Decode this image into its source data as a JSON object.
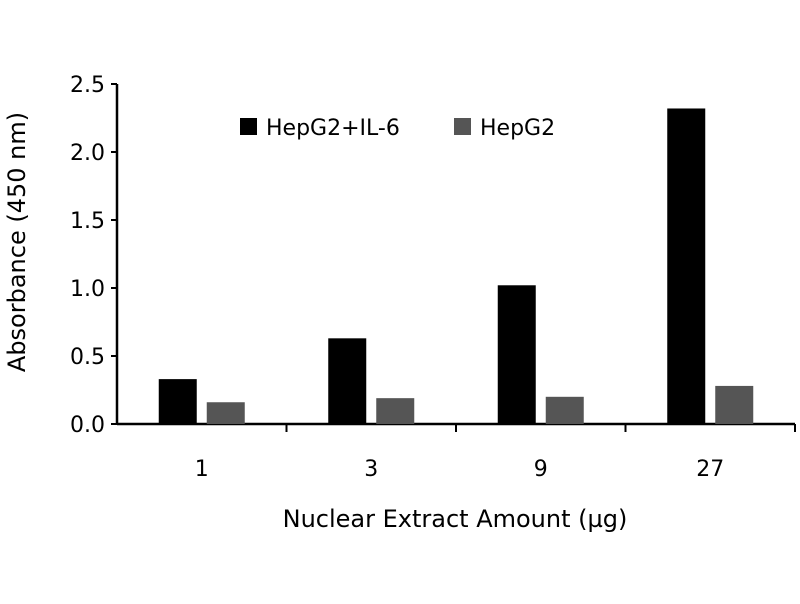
{
  "chart_data": {
    "type": "bar",
    "title": "",
    "xlabel": "Nuclear Extract Amount (µg)",
    "ylabel": "Absorbance (450 nm)",
    "categories": [
      "1",
      "3",
      "9",
      "27"
    ],
    "series": [
      {
        "name": "HepG2+IL-6",
        "values": [
          0.33,
          0.63,
          1.02,
          2.32
        ],
        "color": "#000000"
      },
      {
        "name": "HepG2",
        "values": [
          0.16,
          0.19,
          0.2,
          0.28
        ],
        "color": "#555555"
      }
    ],
    "ylim": [
      0,
      2.5
    ],
    "yticks": [
      "0.0",
      "0.5",
      "1.0",
      "1.5",
      "2.0",
      "2.5"
    ],
    "grid": false,
    "legend_position": "top-center"
  }
}
